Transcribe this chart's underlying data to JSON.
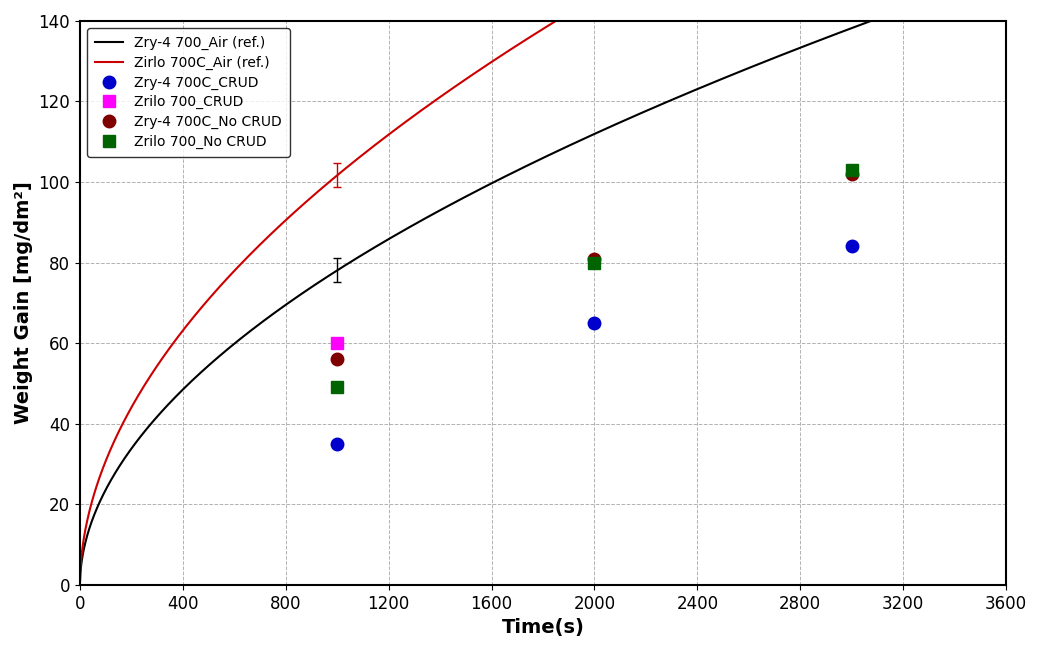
{
  "title": "",
  "xlabel": "Time(s)",
  "ylabel": "Weight Gain [mg/dm²]",
  "xlim": [
    0,
    3600
  ],
  "ylim": [
    0,
    140
  ],
  "xticks": [
    0,
    400,
    800,
    1200,
    1600,
    2000,
    2400,
    2800,
    3200,
    3600
  ],
  "yticks": [
    0,
    20,
    40,
    60,
    80,
    100,
    120,
    140
  ],
  "bg_color": "#ffffff",
  "grid_color": "#aaaaaa",
  "ref_curves": [
    {
      "label": "Zry-4 700_Air (ref.)",
      "color": "#000000",
      "A": 2.15,
      "n": 0.52
    },
    {
      "label": "Zirlo 700C_Air (ref.)",
      "color": "#cc0000",
      "A": 2.8,
      "n": 0.52
    }
  ],
  "scatter_data": [
    {
      "label": "Zry-4 700C_CRUD",
      "color": "#0000cc",
      "marker": "o",
      "markersize": 9,
      "x": [
        1000,
        2000,
        3000
      ],
      "y": [
        35,
        65,
        84
      ]
    },
    {
      "label": "Zrilo 700_CRUD",
      "color": "#ff00ff",
      "marker": "s",
      "markersize": 9,
      "x": [
        1000
      ],
      "y": [
        60
      ]
    },
    {
      "label": "Zry-4 700C_No CRUD",
      "color": "#800000",
      "marker": "o",
      "markersize": 9,
      "x": [
        1000,
        2000,
        3000
      ],
      "y": [
        56,
        81,
        102
      ]
    },
    {
      "label": "Zrilo 700_No CRUD",
      "color": "#006400",
      "marker": "s",
      "markersize": 9,
      "x": [
        1000,
        2000,
        3000
      ],
      "y": [
        49,
        80,
        103
      ]
    }
  ],
  "errorbar_t": 1000,
  "legend_fontsize": 10,
  "axis_label_fontsize": 14,
  "tick_fontsize": 12,
  "label_color": "#000000",
  "tick_color": "#000000",
  "linewidth": 1.5
}
